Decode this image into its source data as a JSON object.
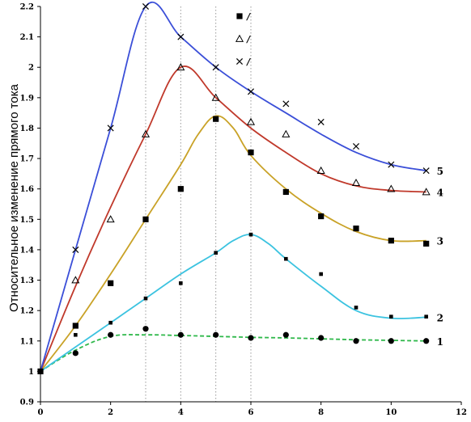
{
  "chart_data": {
    "type": "line",
    "title": "",
    "xlabel": "",
    "ylabel": "Относительное изменение прямого тока",
    "xlim": [
      0,
      12
    ],
    "ylim": [
      0.9,
      2.2
    ],
    "x_ticks": [
      "0",
      "2",
      "4",
      "6",
      "8",
      "10",
      "12"
    ],
    "y_ticks": [
      "0.9",
      "1",
      "1.1",
      "1.2",
      "1.3",
      "1.4",
      "1.5",
      "1.6",
      "1.7",
      "1.8",
      "1.9",
      "2",
      "2.1",
      "2.2"
    ],
    "grid": false,
    "vertical_reference_lines_x": [
      3,
      4,
      5,
      6
    ],
    "legend": {
      "placement": "top-center",
      "entries": [
        {
          "marker": "filled-square",
          "label": "/"
        },
        {
          "marker": "open-triangle",
          "label": "/"
        },
        {
          "marker": "cross",
          "label": "/"
        }
      ]
    },
    "series": [
      {
        "label": "1",
        "color": "#2eb84a",
        "dashed": true,
        "marker": "filled-circle",
        "curve_x": [
          0,
          1,
          2,
          3,
          4,
          5,
          6,
          7,
          8,
          9,
          10,
          11
        ],
        "curve_y": [
          1.0,
          1.07,
          1.115,
          1.12,
          1.118,
          1.115,
          1.112,
          1.11,
          1.107,
          1.104,
          1.102,
          1.1
        ],
        "points_x": [
          0,
          1,
          2,
          3,
          4,
          5,
          6,
          7,
          8,
          9,
          10,
          11
        ],
        "points_y": [
          1.0,
          1.06,
          1.12,
          1.14,
          1.12,
          1.12,
          1.11,
          1.12,
          1.11,
          1.1,
          1.1,
          1.1
        ]
      },
      {
        "label": "2",
        "color": "#3cc3e0",
        "dashed": false,
        "marker": "small-square",
        "curve_x": [
          0,
          1,
          2,
          3,
          4,
          5,
          5.5,
          6,
          6.5,
          7,
          8,
          9,
          10,
          11
        ],
        "curve_y": [
          1.0,
          1.08,
          1.16,
          1.24,
          1.32,
          1.39,
          1.43,
          1.45,
          1.42,
          1.37,
          1.28,
          1.2,
          1.175,
          1.178
        ],
        "points_x": [
          1,
          2,
          3,
          4,
          5,
          6,
          7,
          8,
          9,
          10,
          11
        ],
        "points_y": [
          1.12,
          1.16,
          1.24,
          1.29,
          1.39,
          1.45,
          1.37,
          1.32,
          1.21,
          1.18,
          1.18
        ]
      },
      {
        "label": "3",
        "color": "#c9a227",
        "dashed": false,
        "marker": "filled-square",
        "curve_x": [
          0,
          1,
          2,
          3,
          4,
          4.5,
          5,
          5.5,
          6,
          7,
          8,
          9,
          10,
          11
        ],
        "curve_y": [
          1.0,
          1.15,
          1.32,
          1.5,
          1.68,
          1.78,
          1.84,
          1.8,
          1.71,
          1.6,
          1.52,
          1.46,
          1.43,
          1.43
        ],
        "points_x": [
          0,
          1,
          2,
          3,
          4,
          5,
          6,
          7,
          8,
          9,
          10,
          11
        ],
        "points_y": [
          1.0,
          1.15,
          1.29,
          1.5,
          1.6,
          1.83,
          1.72,
          1.59,
          1.51,
          1.47,
          1.43,
          1.42
        ]
      },
      {
        "label": "4",
        "color": "#c0392b",
        "dashed": false,
        "marker": "open-triangle",
        "curve_x": [
          0,
          1,
          2,
          3,
          4,
          5,
          6,
          7,
          8,
          9,
          10,
          11
        ],
        "curve_y": [
          1.0,
          1.28,
          1.54,
          1.78,
          2.0,
          1.9,
          1.8,
          1.72,
          1.65,
          1.61,
          1.595,
          1.59
        ],
        "points_x": [
          1,
          2,
          3,
          4,
          5,
          6,
          7,
          8,
          9,
          10,
          11
        ],
        "points_y": [
          1.3,
          1.5,
          1.78,
          2.0,
          1.9,
          1.82,
          1.78,
          1.66,
          1.62,
          1.6,
          1.59
        ]
      },
      {
        "label": "5",
        "color": "#3b4fd8",
        "dashed": false,
        "marker": "cross",
        "curve_x": [
          0,
          1,
          2,
          3,
          4,
          5,
          6,
          7,
          8,
          9,
          10,
          11
        ],
        "curve_y": [
          1.0,
          1.4,
          1.8,
          2.2,
          2.1,
          2.0,
          1.92,
          1.85,
          1.78,
          1.72,
          1.68,
          1.66
        ],
        "points_x": [
          1,
          2,
          3,
          4,
          5,
          6,
          7,
          8,
          9,
          10,
          11
        ],
        "points_y": [
          1.4,
          1.8,
          2.2,
          2.1,
          2.0,
          1.92,
          1.88,
          1.82,
          1.74,
          1.68,
          1.66
        ]
      }
    ]
  }
}
